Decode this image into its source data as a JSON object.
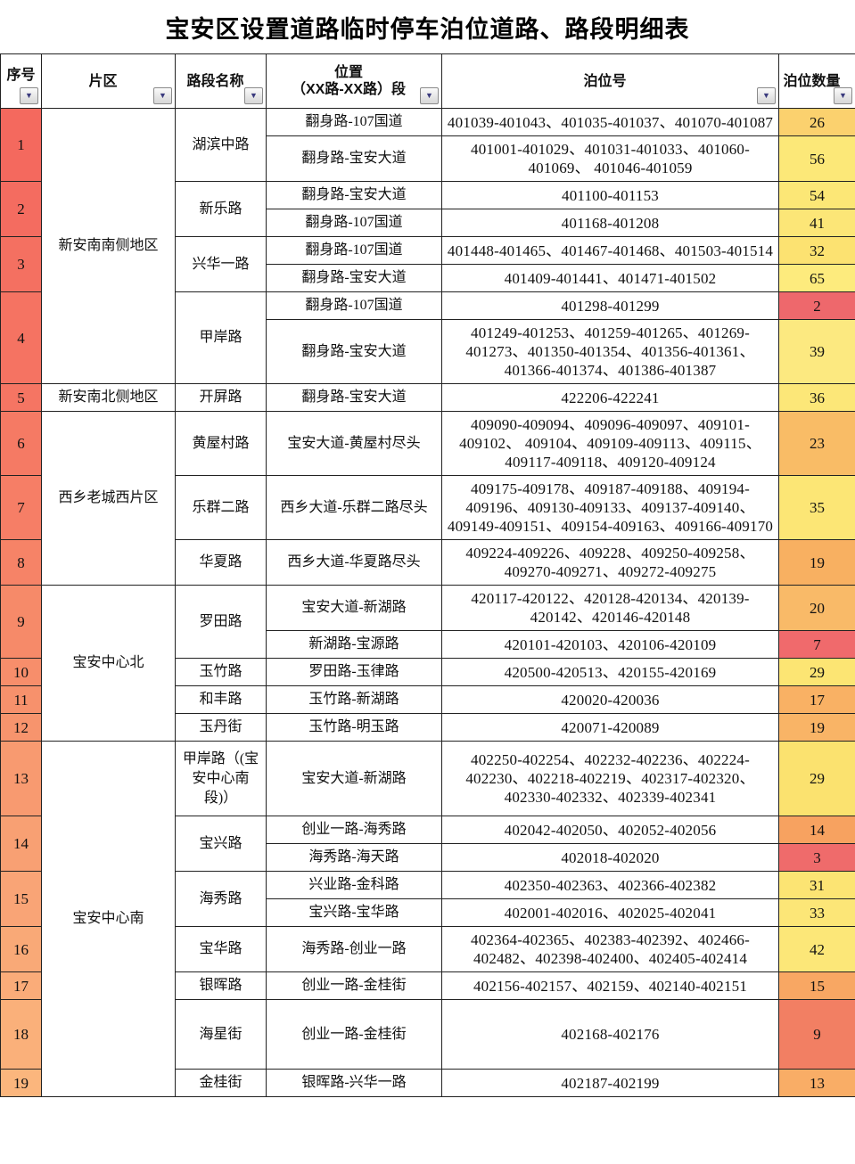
{
  "title": "宝安区设置道路临时停车泊位道路、路段明细表",
  "icons": {
    "filter_arrow": "▼"
  },
  "columns": {
    "seq": "序号",
    "area": "片区",
    "road": "路段名称",
    "location_line1": "位置",
    "location_line2": "（XX路-XX路）段",
    "berth_ids": "泊位号",
    "berth_count": "泊位数量"
  },
  "groups": [
    {
      "area": "新安南南侧地区",
      "rows": [
        {
          "seq": "1",
          "seq_color": "#F4695E",
          "road": "湖滨中路",
          "segments": [
            {
              "location": "翻身路-107国道",
              "berths": "401039-401043、401035-401037、401070-401087",
              "count": "26",
              "count_color": "#FBD16E"
            },
            {
              "location": "翻身路-宝安大道",
              "berths": "401001-401029、401031-401033、401060-401069、 401046-401059",
              "count": "56",
              "count_color": "#FCE878"
            }
          ]
        },
        {
          "seq": "2",
          "seq_color": "#F46C60",
          "road": "新乐路",
          "segments": [
            {
              "location": "翻身路-宝安大道",
              "berths": "401100-401153",
              "count": "54",
              "count_color": "#FCE776"
            },
            {
              "location": "翻身路-107国道",
              "berths": "401168-401208",
              "count": "41",
              "count_color": "#FCE677"
            }
          ]
        },
        {
          "seq": "3",
          "seq_color": "#F47061",
          "road": "兴华一路",
          "segments": [
            {
              "location": "翻身路-107国道",
              "berths": "401448-401465、401467-401468、401503-401514",
              "count": "32",
              "count_color": "#FCE271"
            },
            {
              "location": "翻身路-宝安大道",
              "berths": "401409-401441、401471-401502",
              "count": "65",
              "count_color": "#FDEB7D"
            }
          ]
        },
        {
          "seq": "4",
          "seq_color": "#F57362",
          "road": "甲岸路",
          "segments": [
            {
              "location": "翻身路-107国道",
              "berths": "401298-401299",
              "count": "2",
              "count_color": "#EE686C"
            },
            {
              "location": "翻身路-宝安大道",
              "berths": "401249-401253、401259-401265、401269-401273、401350-401354、401356-401361、401366-401374、401386-401387",
              "count": "39",
              "count_color": "#FCE980"
            }
          ]
        }
      ]
    },
    {
      "area": "新安南北侧地区",
      "rows": [
        {
          "seq": "5",
          "seq_color": "#F57563",
          "road": "开屏路",
          "segments": [
            {
              "location": "翻身路-宝安大道",
              "berths": "422206-422241",
              "count": "36",
              "count_color": "#FCE778"
            }
          ]
        }
      ]
    },
    {
      "area": "西乡老城西片区",
      "rows": [
        {
          "seq": "6",
          "seq_color": "#F57A64",
          "road": "黄屋村路",
          "segments": [
            {
              "location": "宝安大道-黄屋村尽头",
              "berths": "409090-409094、409096-409097、409101-409102、 409104、409109-409113、409115、409117-409118、409120-409124",
              "count": "23",
              "count_color": "#F9BC66"
            }
          ]
        },
        {
          "seq": "7",
          "seq_color": "#F67E66",
          "road": "乐群二路",
          "segments": [
            {
              "location": "西乡大道-乐群二路尽头",
              "berths": "409175-409178、409187-409188、409194-409196、409130-409133、409137-409140、409149-409151、409154-409163、409166-409170",
              "count": "35",
              "count_color": "#FCE675"
            }
          ]
        },
        {
          "seq": "8",
          "seq_color": "#F68367",
          "road": "华夏路",
          "segments": [
            {
              "location": "西乡大道-华夏路尽头",
              "berths": "409224-409226、409228、409250-409258、409270-409271、409272-409275",
              "count": "19",
              "count_color": "#F8B061"
            }
          ]
        }
      ]
    },
    {
      "area": "宝安中心北",
      "rows": [
        {
          "seq": "9",
          "seq_color": "#F68A69",
          "road": "罗田路",
          "segments": [
            {
              "location": "宝安大道-新湖路",
              "berths": "420117-420122、420128-420134、420139-420142、420146-420148",
              "count": "20",
              "count_color": "#F9BA68"
            },
            {
              "location": "新湖路-宝源路",
              "berths": "420101-420103、420106-420109",
              "count": "7",
              "count_color": "#F06A6C"
            }
          ]
        },
        {
          "seq": "10",
          "seq_color": "#F78E6B",
          "road": "玉竹路",
          "segments": [
            {
              "location": "罗田路-玉律路",
              "berths": "420500-420513、420155-420169",
              "count": "29",
              "count_color": "#FCE573"
            }
          ]
        },
        {
          "seq": "11",
          "seq_color": "#F7916C",
          "road": "和丰路",
          "segments": [
            {
              "location": "玉竹路-新湖路",
              "berths": "420020-420036",
              "count": "17",
              "count_color": "#F9B164"
            }
          ]
        },
        {
          "seq": "12",
          "seq_color": "#F7946D",
          "road": "玉丹街",
          "segments": [
            {
              "location": "玉竹路-明玉路",
              "berths": "420071-420089",
              "count": "19",
              "count_color": "#F9B466"
            }
          ]
        }
      ]
    },
    {
      "area": "宝安中心南",
      "rows": [
        {
          "seq": "13",
          "seq_color": "#F89A70",
          "road": "甲岸路（(宝安中心南段)）",
          "segments": [
            {
              "location": "宝安大道-新湖路",
              "berths": "402250-402254、402232-402236、402224-402230、402218-402219、402317-402320、402330-402332、402339-402341",
              "count": "29",
              "count_color": "#FBE26F",
              "h": 84
            }
          ]
        },
        {
          "seq": "14",
          "seq_color": "#F8A073",
          "road": "宝兴路",
          "segments": [
            {
              "location": "创业一路-海秀路",
              "berths": "402042-402050、402052-402056",
              "count": "14",
              "count_color": "#F7A260"
            },
            {
              "location": "海秀路-海天路",
              "berths": "402018-402020",
              "count": "3",
              "count_color": "#EF6B6B"
            }
          ]
        },
        {
          "seq": "15",
          "seq_color": "#F9A476",
          "road": "海秀路",
          "segments": [
            {
              "location": "兴业路-金科路",
              "berths": "402350-402363、402366-402382",
              "count": "31",
              "count_color": "#FCE473"
            },
            {
              "location": "宝兴路-宝华路",
              "berths": "402001-402016、402025-402041",
              "count": "33",
              "count_color": "#FCE677"
            }
          ]
        },
        {
          "seq": "16",
          "seq_color": "#F9A977",
          "road": "宝华路",
          "segments": [
            {
              "location": "海秀路-创业一路",
              "berths": "402364-402365、402383-402392、402466-402482、402398-402400、402405-402414",
              "count": "42",
              "count_color": "#FCE778"
            }
          ]
        },
        {
          "seq": "17",
          "seq_color": "#FAAC79",
          "road": "银晖路",
          "segments": [
            {
              "location": "创业一路-金桂街",
              "berths": "402156-402157、402159、402140-402151",
              "count": "15",
              "count_color": "#F8A763"
            }
          ]
        },
        {
          "seq": "18",
          "seq_color": "#FAB07A",
          "road": "海星街",
          "segments": [
            {
              "location": "创业一路-金桂街",
              "berths": "402168-402176",
              "count": "9",
              "count_color": "#F27F63",
              "h": 78
            }
          ]
        },
        {
          "seq": "19",
          "seq_color": "#FBB67D",
          "road": "金桂街",
          "segments": [
            {
              "location": "银晖路-兴华一路",
              "berths": "402187-402199",
              "count": "13",
              "count_color": "#F9AD66"
            }
          ]
        }
      ]
    }
  ]
}
